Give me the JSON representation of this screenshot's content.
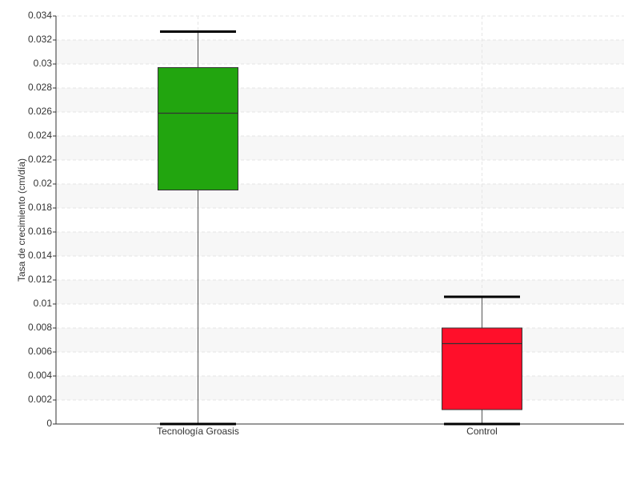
{
  "chart_data": {
    "type": "box",
    "y_label": "Tasa de crecimiento (cm/día)",
    "categories": [
      "Tecnología Groasis",
      "Control"
    ],
    "boxes": [
      {
        "min": 0,
        "q1": 0.0195,
        "median": 0.0259,
        "q3": 0.0297,
        "max": 0.0327,
        "color": "#22a50f"
      },
      {
        "min": 0,
        "q1": 0.0012,
        "median": 0.0067,
        "q3": 0.008,
        "max": 0.0106,
        "color": "#ff0f2a"
      }
    ],
    "ylim": [
      0,
      0.034
    ],
    "yticks": [
      0,
      0.002,
      0.004,
      0.006,
      0.008,
      0.01,
      0.012,
      0.014,
      0.016,
      0.018,
      0.02,
      0.022,
      0.024,
      0.026,
      0.028,
      0.03,
      0.032,
      0.034
    ],
    "grid": true
  }
}
